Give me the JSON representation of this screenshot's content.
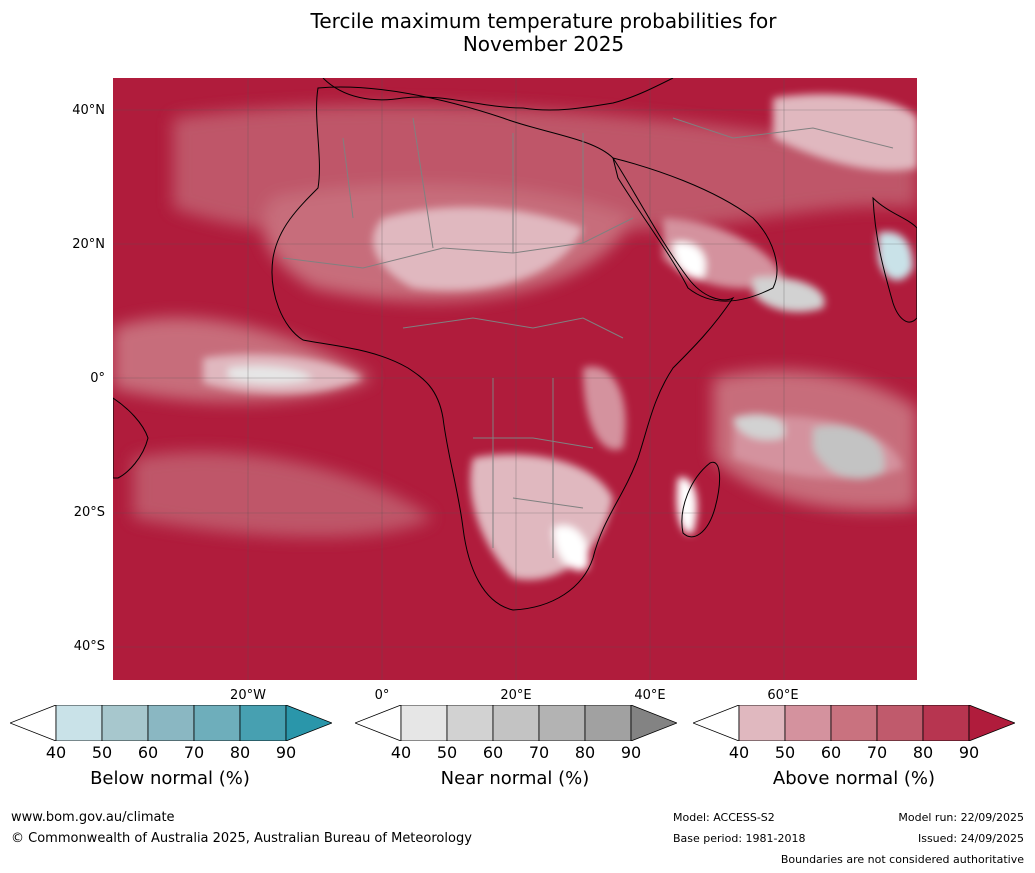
{
  "title_line1": "Tercile maximum temperature probabilities for",
  "title_line2": "November 2025",
  "map": {
    "lat_labels": [
      "40°N",
      "20°N",
      "0°",
      "20°S",
      "40°S"
    ],
    "lon_labels": [
      "20°W",
      "0°",
      "20°E",
      "40°E",
      "60°E"
    ],
    "colors": {
      "above": [
        "#e0b8bf",
        "#d4929e",
        "#c9727f",
        "#c05a6c",
        "#b73550",
        "#b01c3c"
      ],
      "near": [
        "#e6e6e6",
        "#d2d2d2",
        "#c3c3c3",
        "#b3b3b3",
        "#a1a1a1",
        "#838383"
      ],
      "below": [
        "#c9e2e8",
        "#a7c7cd",
        "#8ab7c2",
        "#6eaebb",
        "#47a0b1",
        "#2a96aa"
      ]
    }
  },
  "colorbars": [
    {
      "title": "Below normal (%)",
      "ticks": [
        "40",
        "50",
        "60",
        "70",
        "80",
        "90"
      ],
      "colors": [
        "#c9e2e8",
        "#a7c7cd",
        "#8ab7c2",
        "#6eaebb",
        "#47a0b1",
        "#2a96aa"
      ]
    },
    {
      "title": "Near normal (%)",
      "ticks": [
        "40",
        "50",
        "60",
        "70",
        "80",
        "90"
      ],
      "colors": [
        "#e6e6e6",
        "#d2d2d2",
        "#c3c3c3",
        "#b3b3b3",
        "#a1a1a1",
        "#838383"
      ]
    },
    {
      "title": "Above normal (%)",
      "ticks": [
        "40",
        "50",
        "60",
        "70",
        "80",
        "90"
      ],
      "colors": [
        "#e0b8bf",
        "#d4929e",
        "#c9727f",
        "#c05a6c",
        "#b73550",
        "#b01c3c"
      ]
    }
  ],
  "footer": {
    "website": "www.bom.gov.au/climate",
    "copyright": "© Commonwealth of Australia 2025, Australian Bureau of Meteorology",
    "model": "Model: ACCESS-S2",
    "base_period": "Base period: 1981-2018",
    "model_run": "Model run: 22/09/2025",
    "issued": "Issued: 24/09/2025",
    "disclaimer": "Boundaries are not considered authoritative"
  }
}
